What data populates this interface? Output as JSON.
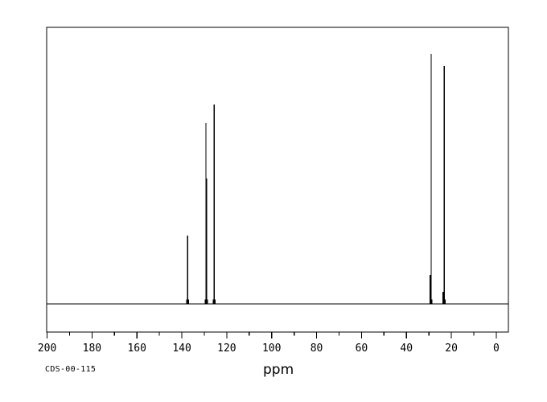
{
  "page": {
    "background_color": "#ffffff",
    "line_color": "#000000"
  },
  "footer": {
    "xlabel": "ppm",
    "code_label": "CDS-00-115"
  },
  "chart_data": {
    "type": "line",
    "subtype": "NMR spectrum (13C)",
    "title": "",
    "xlabel": "ppm",
    "ylabel": "",
    "annotation": "CDS-00-115",
    "legend_position": "none",
    "grid": false,
    "x_axis": {
      "unit": "ppm",
      "reversed": true,
      "min": -5.4,
      "max": 200.2,
      "major_ticks": [
        200,
        180,
        160,
        140,
        120,
        100,
        80,
        60,
        40,
        20,
        0
      ],
      "minor_tick_step": 10
    },
    "y_axis": {
      "visible": false,
      "range": [
        0,
        1
      ]
    },
    "peaks": [
      {
        "ppm": 137.4,
        "intensity": 0.247
      },
      {
        "ppm": 129.3,
        "intensity": 0.654
      },
      {
        "ppm": 128.9,
        "intensity": 0.453
      },
      {
        "ppm": 125.6,
        "intensity": 0.721
      },
      {
        "ppm": 29.4,
        "intensity": 0.105
      },
      {
        "ppm": 29.0,
        "intensity": 0.904
      },
      {
        "ppm": 23.7,
        "intensity": 0.044
      },
      {
        "ppm": 23.2,
        "intensity": 0.86
      }
    ]
  }
}
